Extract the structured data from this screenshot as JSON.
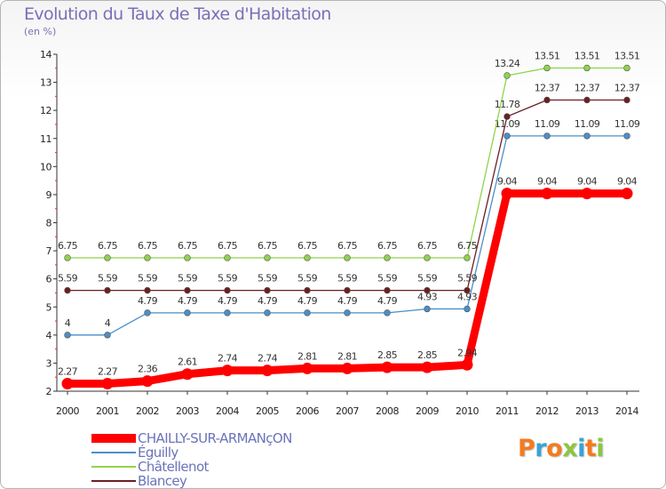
{
  "title": "Evolution du Taux de Taxe d'Habitation",
  "subtitle": "(en %)",
  "brand": {
    "text": "Proxiti",
    "colors": [
      "#f47a20",
      "#39a3d6",
      "#f47a20",
      "#8dc63f",
      "#39a3d6",
      "#f47a20",
      "#8dc63f"
    ]
  },
  "chart_data": {
    "type": "line",
    "title": "Evolution du Taux de Taxe d'Habitation",
    "ylabel": "(en %)",
    "xlabel": "",
    "x": [
      2000,
      2001,
      2002,
      2003,
      2004,
      2005,
      2006,
      2007,
      2008,
      2009,
      2010,
      2011,
      2012,
      2013,
      2014
    ],
    "ylim": [
      2,
      14
    ],
    "yticks": [
      2,
      3,
      4,
      5,
      6,
      7,
      8,
      9,
      10,
      11,
      12,
      13,
      14
    ],
    "grid": false,
    "legend_position": "bottom-left",
    "series": [
      {
        "name": "CHAILLY-SUR-ARMANçON",
        "color": "#ff0000",
        "values": [
          2.27,
          2.27,
          2.36,
          2.61,
          2.74,
          2.74,
          2.81,
          2.81,
          2.85,
          2.85,
          2.94,
          9.04,
          9.04,
          9.04,
          9.04
        ],
        "labels": [
          "2.27",
          "2.27",
          "2.36",
          "2.61",
          "2.74",
          "2.74",
          "2.81",
          "2.81",
          "2.85",
          "2.85",
          "2.94",
          "9.04",
          "9.04",
          "9.04",
          "9.04"
        ]
      },
      {
        "name": "Éguilly",
        "color": "#4a8fc9",
        "values": [
          4,
          4,
          4.79,
          4.79,
          4.79,
          4.79,
          4.79,
          4.79,
          4.79,
          4.93,
          4.93,
          11.09,
          11.09,
          11.09,
          11.09
        ],
        "labels": [
          "4",
          "4",
          "4.79",
          "4.79",
          "4.79",
          "4.79",
          "4.79",
          "4.79",
          "4.79",
          "4.93",
          "4.93",
          "11.09",
          "11.09",
          "11.09",
          "11.09"
        ]
      },
      {
        "name": "Châtellenot",
        "color": "#8fd44a",
        "values": [
          6.75,
          6.75,
          6.75,
          6.75,
          6.75,
          6.75,
          6.75,
          6.75,
          6.75,
          6.75,
          6.75,
          13.24,
          13.51,
          13.51,
          13.51
        ],
        "labels": [
          "6.75",
          "6.75",
          "6.75",
          "6.75",
          "6.75",
          "6.75",
          "6.75",
          "6.75",
          "6.75",
          "6.75",
          "6.75",
          "13.24",
          "13.51",
          "13.51",
          "13.51"
        ]
      },
      {
        "name": "Blancey",
        "color": "#6b1f24",
        "values": [
          5.59,
          5.59,
          5.59,
          5.59,
          5.59,
          5.59,
          5.59,
          5.59,
          5.59,
          5.59,
          5.59,
          11.78,
          12.37,
          12.37,
          12.37
        ],
        "labels": [
          "5.59",
          "5.59",
          "5.59",
          "5.59",
          "5.59",
          "5.59",
          "5.59",
          "5.59",
          "5.59",
          "5.59",
          "5.59",
          "11.78",
          "12.37",
          "12.37",
          "12.37"
        ]
      }
    ]
  }
}
